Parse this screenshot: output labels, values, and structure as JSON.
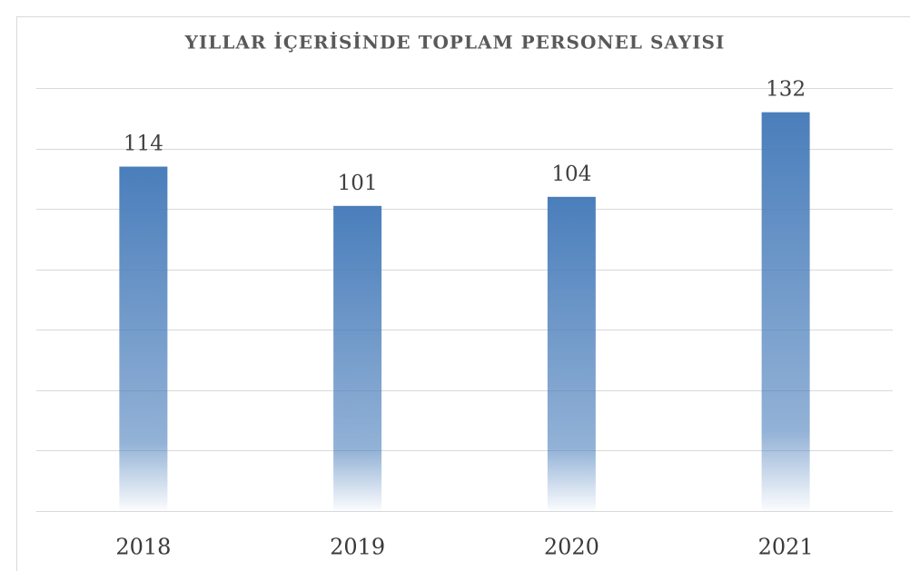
{
  "chart_data": {
    "type": "bar",
    "title": "YILLAR İÇERİSİNDE TOPLAM PERSONEL SAYISI",
    "categories": [
      "2018",
      "2019",
      "2020",
      "2021"
    ],
    "values": [
      114,
      101,
      104,
      132
    ],
    "color": "#4a7ebb",
    "ylim": [
      0,
      140
    ],
    "yticks": [
      0,
      20,
      40,
      60,
      80,
      100,
      120,
      140
    ],
    "grid": true
  }
}
